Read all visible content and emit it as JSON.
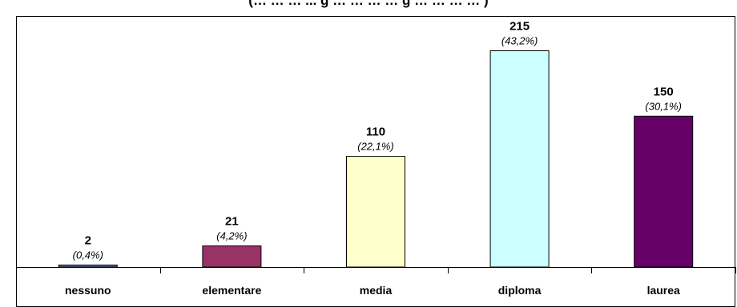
{
  "chart_data": {
    "type": "bar",
    "title": "(… … … ... g … … … … g … … … … )",
    "categories": [
      "nessuno",
      "elementare",
      "media",
      "diploma",
      "laurea"
    ],
    "values": [
      2,
      21,
      110,
      215,
      150
    ],
    "percent_labels": [
      "(0,4%)",
      "(4,2%)",
      "(22,1%)",
      "(43,2%)",
      "(30,1%)"
    ],
    "colors": [
      "#5a6bb0",
      "#993366",
      "#ffffcc",
      "#ccffff",
      "#660066"
    ],
    "ylim": [
      0,
      240
    ],
    "grid": false,
    "xlabel": "",
    "ylabel": ""
  }
}
